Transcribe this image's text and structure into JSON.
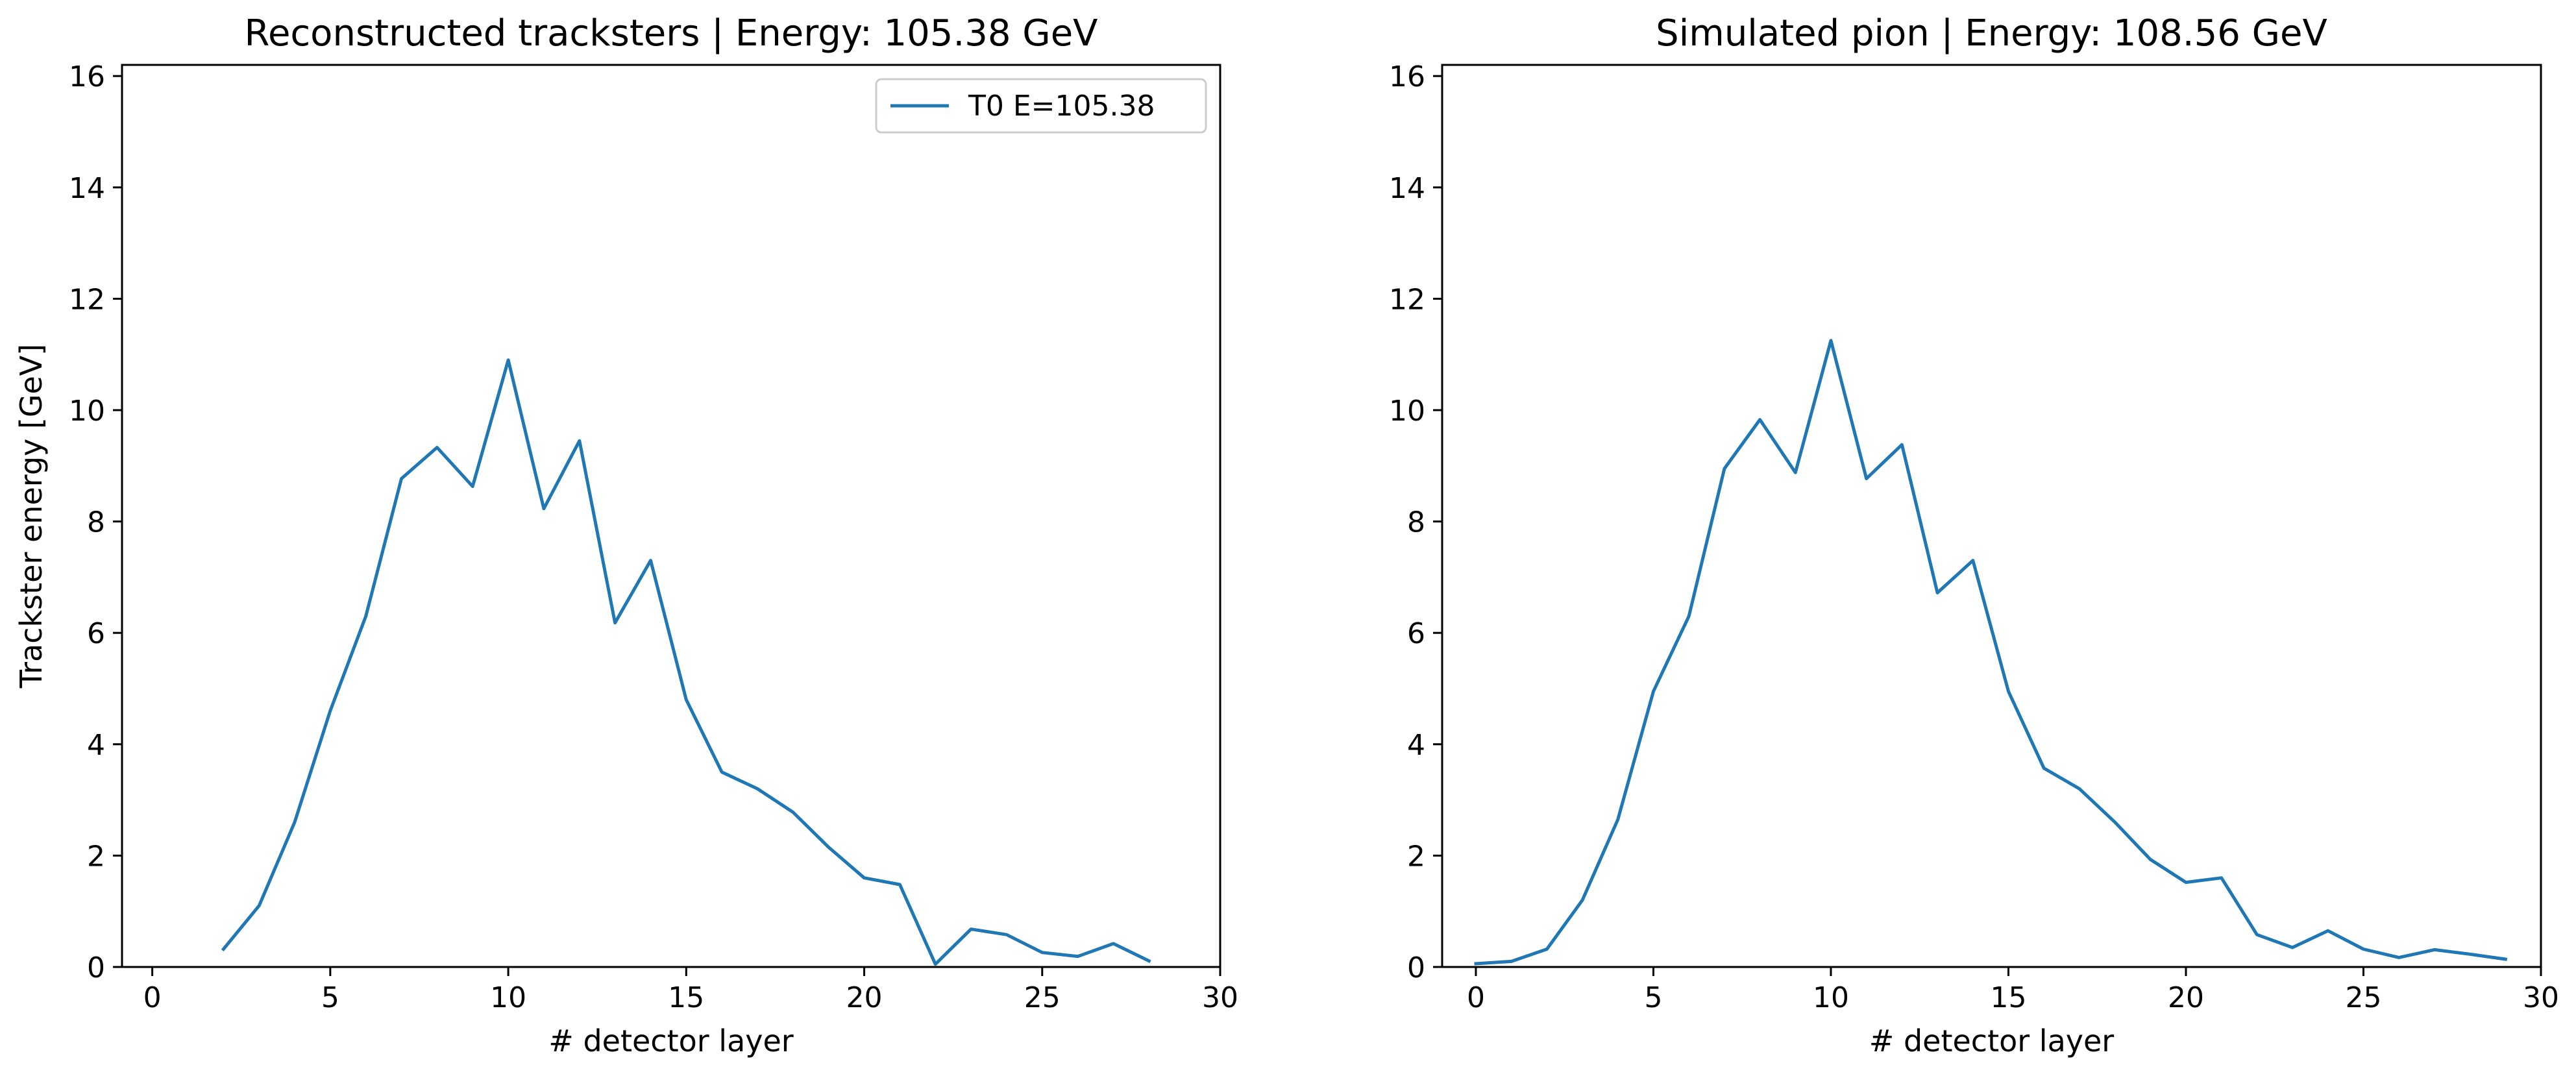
{
  "chart_data": [
    {
      "type": "line",
      "title": "Reconstructed tracksters | Energy: 105.38 GeV",
      "xlabel": "# detector layer",
      "ylabel": "Trackster energy [GeV]",
      "xlim": [
        -0.85,
        30
      ],
      "ylim": [
        0,
        16.2
      ],
      "xticks": [
        0,
        5,
        10,
        15,
        20,
        25,
        30
      ],
      "yticks": [
        0,
        2,
        4,
        6,
        8,
        10,
        12,
        14,
        16
      ],
      "grid": false,
      "legend": "top-right",
      "series": [
        {
          "name": "T0 E=105.38",
          "color": "#1f77b4",
          "x": [
            2,
            3,
            4,
            5,
            6,
            7,
            8,
            9,
            10,
            11,
            12,
            13,
            14,
            15,
            16,
            17,
            18,
            19,
            20,
            21,
            22,
            23,
            24,
            25,
            26,
            27,
            28
          ],
          "y": [
            0.32,
            1.1,
            2.6,
            4.6,
            6.3,
            8.77,
            9.33,
            8.63,
            10.9,
            8.23,
            9.45,
            6.18,
            7.3,
            4.8,
            3.5,
            3.2,
            2.78,
            2.15,
            1.6,
            1.48,
            0.05,
            0.68,
            0.58,
            0.26,
            0.19,
            0.42,
            0.11
          ]
        }
      ]
    },
    {
      "type": "line",
      "title": "Simulated pion | Energy: 108.56 GeV",
      "xlabel": "# detector layer",
      "ylabel": "",
      "xlim": [
        -0.95,
        30
      ],
      "ylim": [
        0,
        16.2
      ],
      "xticks": [
        0,
        5,
        10,
        15,
        20,
        25,
        30
      ],
      "yticks": [
        0,
        2,
        4,
        6,
        8,
        10,
        12,
        14,
        16
      ],
      "grid": false,
      "legend": "none",
      "series": [
        {
          "color": "#1f77b4",
          "x": [
            0,
            1,
            2,
            3,
            4,
            5,
            6,
            7,
            8,
            9,
            10,
            11,
            12,
            13,
            14,
            15,
            16,
            17,
            18,
            19,
            20,
            21,
            22,
            23,
            24,
            25,
            26,
            27,
            28,
            29
          ],
          "y": [
            0.06,
            0.1,
            0.32,
            1.2,
            2.65,
            4.95,
            6.3,
            8.95,
            9.83,
            8.88,
            11.25,
            8.77,
            9.38,
            6.72,
            7.3,
            4.95,
            3.57,
            3.2,
            2.6,
            1.93,
            1.52,
            1.6,
            0.58,
            0.35,
            0.65,
            0.32,
            0.17,
            0.31,
            0.23,
            0.14
          ]
        }
      ]
    }
  ]
}
